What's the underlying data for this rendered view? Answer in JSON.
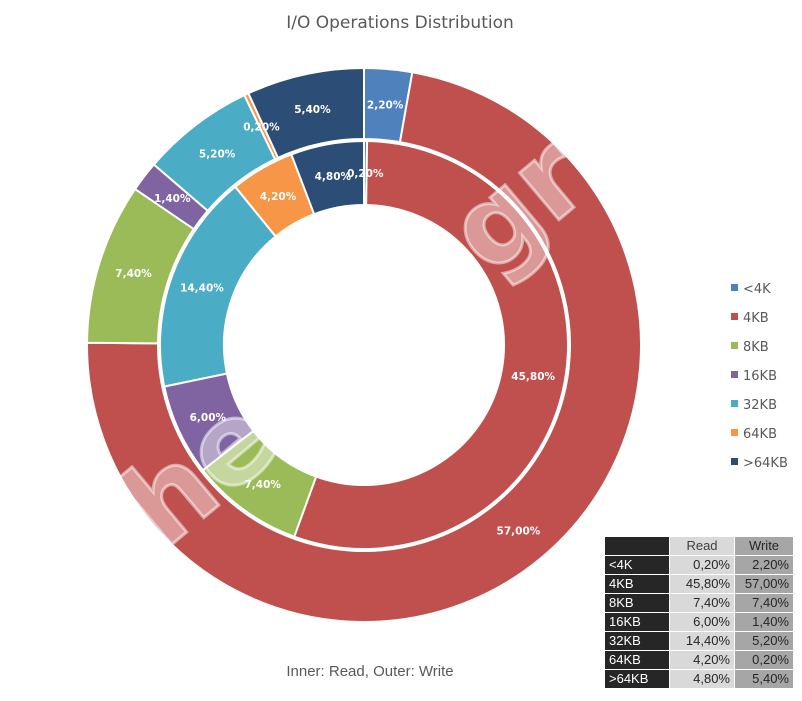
{
  "chart_data": {
    "type": "pie",
    "subtype": "doughnut",
    "title": "I/O Operations Distribution",
    "caption": "Inner: Read, Outer: Write",
    "categories": [
      "<4K",
      "4KB",
      "8KB",
      "16KB",
      "32KB",
      "64KB",
      ">64KB"
    ],
    "series": [
      {
        "name": "Read",
        "ring": "inner",
        "values": [
          0.2,
          45.8,
          7.4,
          6.0,
          14.4,
          4.2,
          4.8
        ],
        "labels": [
          "0,20%",
          "45,80%",
          "7,40%",
          "6,00%",
          "14,40%",
          "4,20%",
          "4,80%"
        ]
      },
      {
        "name": "Write",
        "ring": "outer",
        "values": [
          2.2,
          57.0,
          7.4,
          1.4,
          5.2,
          0.2,
          5.4
        ],
        "labels": [
          "2,20%",
          "57,00%",
          "7,40%",
          "1,40%",
          "5,20%",
          "0,20%",
          "5,40%"
        ]
      }
    ],
    "colors": [
      "#4f81bd",
      "#c0504d",
      "#9bbb59",
      "#8064a2",
      "#4bacc6",
      "#f79646",
      "#2c4d75"
    ],
    "legend": {
      "position": "right",
      "entries": [
        "<4K",
        "4KB",
        "8KB",
        "16KB",
        "32KB",
        "64KB",
        ">64KB"
      ]
    },
    "watermark": "TheLab.gr"
  },
  "table": {
    "headers": [
      "",
      "Read",
      "Write"
    ],
    "rows": [
      [
        "<4K",
        "0,20%",
        "2,20%"
      ],
      [
        "4KB",
        "45,80%",
        "57,00%"
      ],
      [
        "8KB",
        "7,40%",
        "7,40%"
      ],
      [
        "16KB",
        "6,00%",
        "1,40%"
      ],
      [
        "32KB",
        "14,40%",
        "5,20%"
      ],
      [
        "64KB",
        "4,20%",
        "0,20%"
      ],
      [
        ">64KB",
        "4,80%",
        "5,40%"
      ]
    ]
  }
}
